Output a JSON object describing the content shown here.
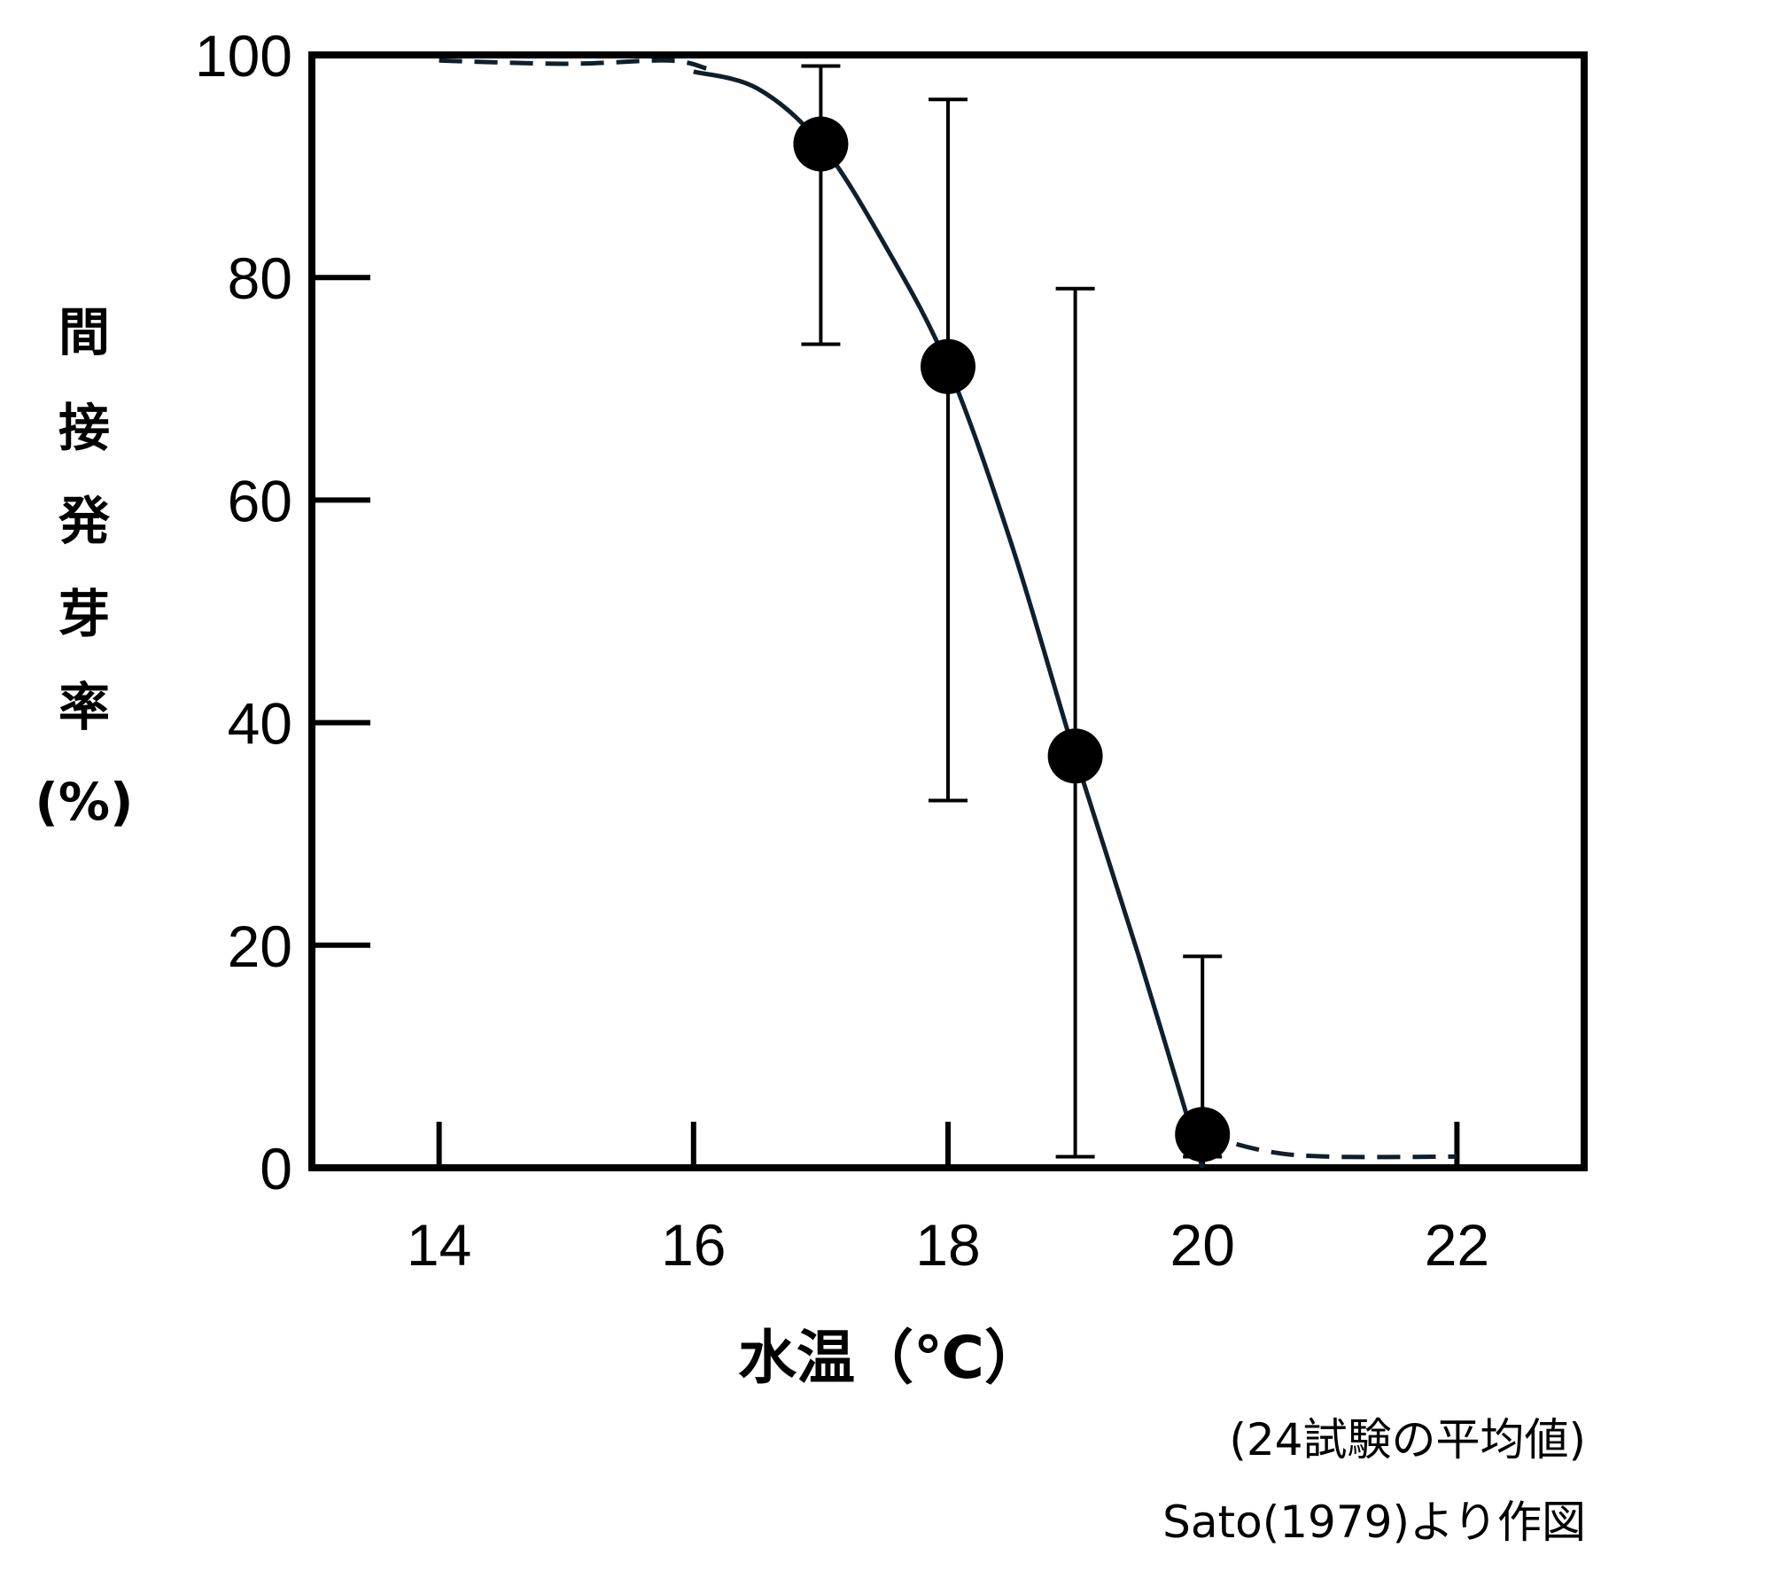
{
  "chart_data": {
    "type": "scatter",
    "xlabel": "水温（℃）",
    "ylabel_chars": [
      "間",
      "接",
      "発",
      "芽",
      "率",
      "(%)"
    ],
    "x_ticks": [
      14,
      16,
      18,
      20,
      22
    ],
    "y_ticks": [
      0,
      20,
      40,
      60,
      80,
      100
    ],
    "xlim": [
      13,
      23
    ],
    "ylim": [
      0,
      100
    ],
    "grid": false,
    "points": [
      {
        "x": 17,
        "y": 92,
        "err_low": 74,
        "err_high": 99
      },
      {
        "x": 18,
        "y": 72,
        "err_low": 33,
        "err_high": 96
      },
      {
        "x": 19,
        "y": 37,
        "err_low": 1,
        "err_high": 79
      },
      {
        "x": 20,
        "y": 3,
        "err_low": 1,
        "err_high": 19
      }
    ],
    "fit_curve": {
      "dashed_left": [
        [
          14,
          99.5
        ],
        [
          15,
          99.2
        ],
        [
          15.8,
          99.5
        ],
        [
          16.1,
          98.8
        ]
      ],
      "solid": [
        [
          16.0,
          98.5
        ],
        [
          16.5,
          97
        ],
        [
          17,
          92
        ],
        [
          17.5,
          83
        ],
        [
          18,
          72
        ],
        [
          18.5,
          56
        ],
        [
          19,
          37
        ],
        [
          19.5,
          19
        ],
        [
          20,
          0
        ]
      ],
      "dashed_right": [
        [
          20.0,
          3
        ],
        [
          20.5,
          1.5
        ],
        [
          21.0,
          1.0
        ],
        [
          22.0,
          1.0
        ]
      ]
    },
    "notes": [
      "(24試験の平均値)",
      "Sato(1979)より作図"
    ]
  },
  "colors": {
    "curve": "#0f1f2b",
    "marker": "#000000",
    "axis": "#000000"
  }
}
